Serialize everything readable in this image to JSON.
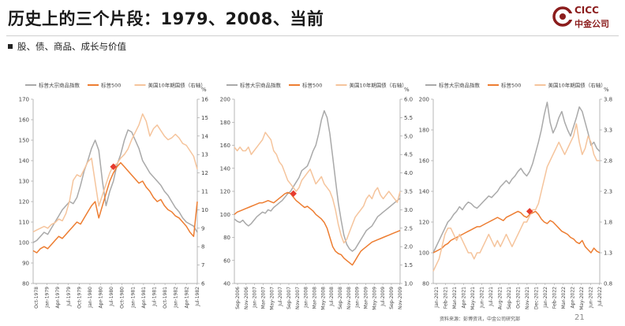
{
  "header": {
    "title": "历史上的三个片段：1979、2008、当前",
    "subtitle": "股、债、商品、成长与价值",
    "logo_top": "CICC",
    "logo_bottom": "中金公司"
  },
  "footer": {
    "source": "资料来源：彭博资讯，中金公司研究部",
    "page": "21"
  },
  "colors": {
    "commodity": "#a9a9a9",
    "sp500": "#ed7d31",
    "ust10y": "#f5c49c",
    "marker": "#e63b2e"
  },
  "chart_data": [
    {
      "type": "line",
      "legend": [
        "标普大宗商品指数",
        "标普500",
        "美国10年期国债（右轴）"
      ],
      "right_unit": "%",
      "ylim": [
        80,
        170
      ],
      "yticks": [
        80,
        90,
        100,
        110,
        120,
        130,
        140,
        150,
        160,
        170
      ],
      "y2lim": [
        6,
        16
      ],
      "y2ticks": [
        6,
        7,
        8,
        9,
        10,
        11,
        12,
        13,
        14,
        15,
        16
      ],
      "xticks": [
        "Oct-1978",
        "Jan-1979",
        "Apr-1979",
        "Jul-1979",
        "Oct-1979",
        "Jan-1980",
        "Apr-1980",
        "Jul-1980",
        "Oct-1980",
        "Jan-1981",
        "Apr-1981",
        "Jul-1981",
        "Oct-1981",
        "Jan-1982",
        "Apr-1982",
        "Jul-1982"
      ],
      "x": [
        0,
        1,
        2,
        3,
        4,
        5,
        6,
        7,
        8,
        9,
        10,
        11,
        12,
        13,
        14,
        15,
        16,
        17,
        18,
        19,
        20,
        21,
        22,
        23,
        24,
        25,
        26,
        27,
        28,
        29,
        30,
        31,
        32,
        33,
        34,
        35,
        36,
        37,
        38,
        39,
        40,
        41,
        42,
        43,
        44,
        45
      ],
      "series": [
        {
          "name": "标普大宗商品指数",
          "axis": "left",
          "values": [
            100,
            101,
            103,
            105,
            104,
            107,
            110,
            113,
            116,
            118,
            120,
            119,
            122,
            128,
            135,
            140,
            146,
            150,
            145,
            130,
            118,
            125,
            130,
            138,
            143,
            150,
            155,
            154,
            150,
            146,
            140,
            137,
            134,
            132,
            130,
            128,
            125,
            123,
            120,
            117,
            115,
            112,
            110,
            109,
            108,
            105
          ]
        },
        {
          "name": "标普500",
          "axis": "left",
          "values": [
            96,
            95,
            97,
            98,
            97,
            99,
            101,
            103,
            102,
            104,
            106,
            108,
            110,
            109,
            112,
            115,
            118,
            120,
            112,
            118,
            124,
            130,
            134,
            137,
            139,
            137,
            135,
            133,
            131,
            129,
            130,
            127,
            125,
            122,
            120,
            121,
            118,
            116,
            115,
            113,
            112,
            110,
            108,
            105,
            103,
            120
          ]
        },
        {
          "name": "美国10年期国债（右轴）",
          "axis": "right",
          "values": [
            8.8,
            8.9,
            9.0,
            9.1,
            9.0,
            9.2,
            9.3,
            9.5,
            9.4,
            9.8,
            10.5,
            11.6,
            11.9,
            11.8,
            12.2,
            12.6,
            12.8,
            11.5,
            10.2,
            10.8,
            11.4,
            12.0,
            12.4,
            12.5,
            12.8,
            13.0,
            13.3,
            13.8,
            14.2,
            14.6,
            15.2,
            14.8,
            14.0,
            14.4,
            14.6,
            14.3,
            14.0,
            13.8,
            13.9,
            14.1,
            13.9,
            13.6,
            13.5,
            13.2,
            12.9,
            12.2
          ]
        }
      ],
      "marker": {
        "x": 22,
        "y": 137
      }
    },
    {
      "type": "line",
      "legend": [
        "标普大宗商品指数",
        "标普500",
        "美国10年期国债（右轴）"
      ],
      "right_unit": "%",
      "ylim": [
        40,
        200
      ],
      "yticks": [
        40,
        60,
        80,
        100,
        120,
        140,
        160,
        180,
        200
      ],
      "y2lim": [
        1.0,
        6.0
      ],
      "y2ticks": [
        1.0,
        1.5,
        2.0,
        2.5,
        3.0,
        3.5,
        4.0,
        4.5,
        5.0,
        5.5,
        6.0
      ],
      "xticks": [
        "Sep-2006",
        "Nov-2006",
        "Jan-2007",
        "Mar-2007",
        "May-2007",
        "Jul-2007",
        "Sep-2007",
        "Nov-2007",
        "Jan-2008",
        "Mar-2008",
        "May-2008",
        "Jul-2008",
        "Sep-2008",
        "Nov-2008",
        "Jan-2009",
        "Mar-2009",
        "May-2009",
        "Jul-2009",
        "Sep-2009",
        "Nov-2009"
      ],
      "x": [
        0,
        1,
        2,
        3,
        4,
        5,
        6,
        7,
        8,
        9,
        10,
        11,
        12,
        13,
        14,
        15,
        16,
        17,
        18,
        19,
        20,
        21,
        22,
        23,
        24,
        25,
        26,
        27,
        28,
        29,
        30,
        31,
        32,
        33,
        34,
        35,
        36,
        37,
        38,
        39,
        40,
        41,
        42,
        43,
        44,
        45,
        46,
        47,
        48,
        49,
        50,
        51,
        52,
        53,
        54,
        55,
        56,
        57,
        58,
        59
      ],
      "series": [
        {
          "name": "标普大宗商品指数",
          "axis": "left",
          "values": [
            96,
            94,
            93,
            95,
            92,
            90,
            92,
            95,
            98,
            100,
            102,
            101,
            104,
            103,
            106,
            108,
            110,
            112,
            115,
            118,
            120,
            124,
            128,
            132,
            138,
            140,
            142,
            148,
            155,
            160,
            170,
            182,
            190,
            184,
            170,
            150,
            130,
            110,
            95,
            82,
            74,
            70,
            68,
            70,
            74,
            78,
            82,
            86,
            88,
            90,
            94,
            98,
            100,
            102,
            104,
            106,
            108,
            110,
            112,
            114
          ]
        },
        {
          "name": "标普500",
          "axis": "left",
          "values": [
            100,
            102,
            103,
            104,
            105,
            106,
            107,
            108,
            109,
            110,
            110,
            111,
            112,
            111,
            110,
            112,
            114,
            116,
            118,
            119,
            118,
            115,
            112,
            110,
            108,
            106,
            107,
            105,
            103,
            100,
            98,
            96,
            93,
            88,
            80,
            72,
            68,
            66,
            65,
            62,
            60,
            58,
            56,
            60,
            64,
            68,
            70,
            72,
            74,
            76,
            77,
            78,
            79,
            80,
            81,
            82,
            83,
            84,
            85,
            86
          ]
        },
        {
          "name": "美国10年期国债（右轴）",
          "axis": "right",
          "values": [
            4.7,
            4.6,
            4.7,
            4.6,
            4.6,
            4.7,
            4.5,
            4.6,
            4.7,
            4.8,
            4.9,
            5.1,
            5.0,
            4.9,
            4.6,
            4.5,
            4.3,
            4.2,
            4.0,
            3.8,
            3.7,
            3.6,
            3.5,
            3.6,
            3.8,
            3.9,
            4.0,
            4.1,
            3.9,
            3.7,
            3.8,
            3.9,
            3.7,
            3.6,
            3.5,
            3.3,
            3.0,
            2.6,
            2.3,
            2.1,
            2.2,
            2.4,
            2.6,
            2.8,
            2.9,
            3.0,
            3.1,
            3.3,
            3.4,
            3.3,
            3.5,
            3.6,
            3.4,
            3.3,
            3.4,
            3.5,
            3.4,
            3.3,
            3.2,
            3.5
          ]
        }
      ],
      "marker": {
        "x": 21,
        "y": 118
      }
    },
    {
      "type": "line",
      "legend": [
        "标普大宗商品指数",
        "标普500",
        "美国10年期国债（右轴）"
      ],
      "right_unit": "%",
      "ylim": [
        80,
        200
      ],
      "yticks": [
        80,
        100,
        120,
        140,
        160,
        180,
        200
      ],
      "y2lim": [
        0.8,
        3.8
      ],
      "y2ticks": [
        0.8,
        1.3,
        1.8,
        2.3,
        2.8,
        3.3,
        3.8
      ],
      "xticks": [
        "Jan-2021",
        "Feb-2021",
        "Mar-2021",
        "Apr-2021",
        "May-2021",
        "Jun-2021",
        "Jul-2021",
        "Aug-2021",
        "Sep-2021",
        "Oct-2021",
        "Nov-2021",
        "Dec-2021",
        "Jan-2022",
        "Feb-2022",
        "Mar-2022",
        "Apr-2022",
        "May-2022",
        "Jun-2022",
        "Jul-2022"
      ],
      "x": [
        0,
        1,
        2,
        3,
        4,
        5,
        6,
        7,
        8,
        9,
        10,
        11,
        12,
        13,
        14,
        15,
        16,
        17,
        18,
        19,
        20,
        21,
        22,
        23,
        24,
        25,
        26,
        27,
        28,
        29,
        30,
        31,
        32,
        33,
        34,
        35,
        36,
        37,
        38,
        39,
        40,
        41,
        42,
        43,
        44,
        45,
        46,
        47,
        48,
        49,
        50,
        51,
        52,
        53,
        54,
        55,
        56,
        57
      ],
      "series": [
        {
          "name": "标普大宗商品指数",
          "axis": "left",
          "values": [
            100,
            104,
            108,
            112,
            116,
            120,
            122,
            125,
            127,
            130,
            128,
            131,
            133,
            132,
            130,
            129,
            131,
            133,
            135,
            137,
            136,
            138,
            140,
            143,
            145,
            147,
            145,
            148,
            150,
            153,
            155,
            152,
            150,
            153,
            158,
            165,
            172,
            180,
            190,
            198,
            185,
            178,
            182,
            188,
            192,
            185,
            180,
            176,
            182,
            188,
            195,
            192,
            185,
            178,
            170,
            172,
            168,
            166
          ]
        },
        {
          "name": "标普500",
          "axis": "left",
          "values": [
            100,
            101,
            102,
            103,
            105,
            106,
            108,
            109,
            110,
            111,
            112,
            113,
            114,
            115,
            116,
            117,
            117,
            118,
            119,
            120,
            121,
            122,
            123,
            122,
            121,
            123,
            124,
            125,
            126,
            127,
            126,
            124,
            123,
            125,
            126,
            127,
            125,
            122,
            120,
            119,
            121,
            120,
            118,
            116,
            114,
            113,
            112,
            110,
            109,
            107,
            106,
            108,
            104,
            102,
            100,
            103,
            101,
            100
          ]
        },
        {
          "name": "美国10年期国债（右轴）",
          "axis": "right",
          "values": [
            1.0,
            1.1,
            1.2,
            1.4,
            1.6,
            1.7,
            1.7,
            1.6,
            1.5,
            1.6,
            1.5,
            1.4,
            1.3,
            1.3,
            1.2,
            1.3,
            1.3,
            1.4,
            1.5,
            1.6,
            1.5,
            1.4,
            1.5,
            1.4,
            1.5,
            1.6,
            1.5,
            1.4,
            1.5,
            1.6,
            1.7,
            1.8,
            1.8,
            1.9,
            2.0,
            2.0,
            2.1,
            2.3,
            2.5,
            2.7,
            2.8,
            2.9,
            3.0,
            3.1,
            3.0,
            2.9,
            3.0,
            3.1,
            3.2,
            3.4,
            3.1,
            2.9,
            3.0,
            3.2,
            3.1,
            2.9,
            2.8,
            2.8
          ]
        }
      ],
      "marker": {
        "x": 33,
        "y": 127
      }
    }
  ]
}
